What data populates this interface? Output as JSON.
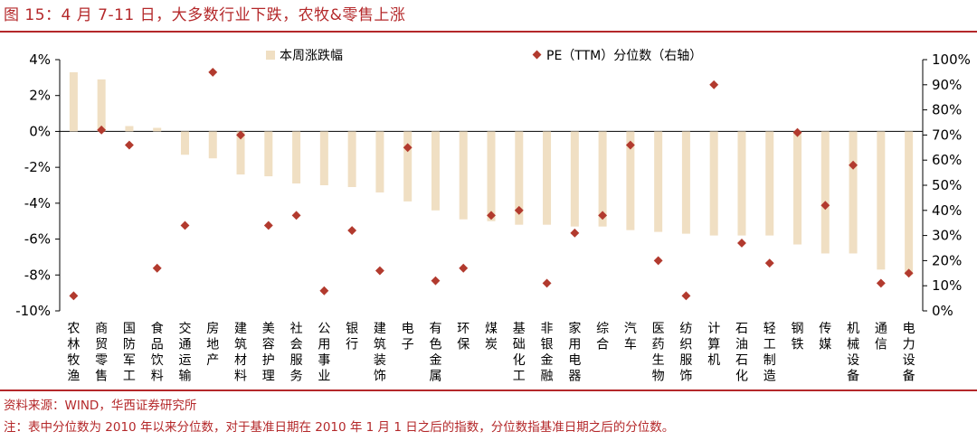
{
  "title": "图 15：4 月 7-11 日，大多数行业下跌，农牧&零售上涨",
  "source": "资料来源：WIND，华西证券研究所",
  "note": "注：表中分位数为 2010 年以来分位数，对于基准日期在 2010 年 1 月 1 日之后的指数，分位数指基准日期之后的分位数。",
  "colors": {
    "bar": "#f0dfc3",
    "marker": "#b23a2e",
    "accent": "#b4282a"
  },
  "chart_data": {
    "type": "bar",
    "legend_position": "top",
    "grid": false,
    "categories": [
      "农林牧渔",
      "商贸零售",
      "国防军工",
      "食品饮料",
      "交通运输",
      "房地产",
      "建筑材料",
      "美容护理",
      "社会服务",
      "公用事业",
      "银行",
      "建筑装饰",
      "电子",
      "有色金属",
      "环保",
      "煤炭",
      "基础化工",
      "非银金融",
      "家用电器",
      "综合",
      "汽车",
      "医药生物",
      "纺织服饰",
      "计算机",
      "石油石化",
      "轻工制造",
      "钢铁",
      "传媒",
      "机械设备",
      "通信",
      "电力设备"
    ],
    "y_left": {
      "min": -10,
      "max": 4,
      "step": 2,
      "ticks": [
        "4%",
        "2%",
        "0%",
        "-2%",
        "-4%",
        "-6%",
        "-8%",
        "-10%"
      ]
    },
    "y_right": {
      "min": 0,
      "max": 100,
      "step": 10,
      "ticks": [
        "100%",
        "90%",
        "80%",
        "70%",
        "60%",
        "50%",
        "40%",
        "30%",
        "20%",
        "10%",
        "0%"
      ]
    },
    "series": [
      {
        "name": "本周涨跌幅",
        "type": "bar",
        "axis": "left",
        "values": [
          3.3,
          2.9,
          0.3,
          0.2,
          -1.3,
          -1.5,
          -2.4,
          -2.5,
          -2.9,
          -3.0,
          -3.1,
          -3.4,
          -3.9,
          -4.4,
          -4.9,
          -5.0,
          -5.2,
          -5.2,
          -5.3,
          -5.3,
          -5.5,
          -5.6,
          -5.7,
          -5.8,
          -5.8,
          -5.8,
          -6.3,
          -6.8,
          -6.8,
          -7.7,
          -8.0
        ]
      },
      {
        "name": "PE（TTM）分位数（右轴）",
        "type": "scatter",
        "axis": "right",
        "values": [
          6,
          72,
          66,
          17,
          34,
          95,
          70,
          34,
          38,
          8,
          32,
          16,
          65,
          12,
          17,
          38,
          40,
          11,
          31,
          38,
          66,
          20,
          6,
          90,
          27,
          19,
          71,
          42,
          58,
          11,
          15
        ]
      }
    ]
  }
}
